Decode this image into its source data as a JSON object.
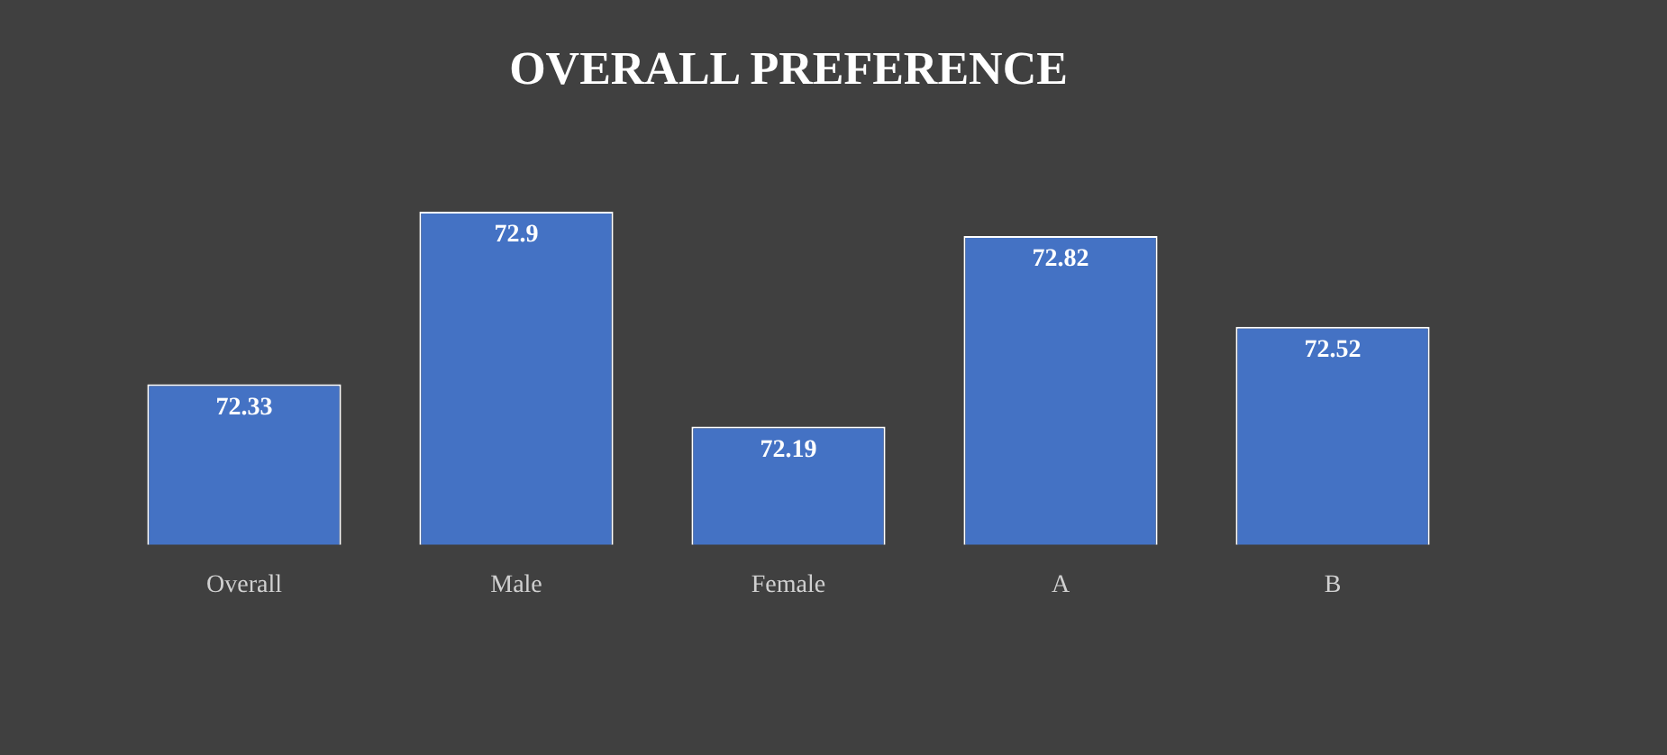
{
  "chart_data": {
    "type": "bar",
    "title": "OVERALL PREFERENCE",
    "categories": [
      "Overall",
      "Male",
      "Female",
      "A",
      "B"
    ],
    "values": [
      72.33,
      72.9,
      72.19,
      72.82,
      72.52
    ],
    "color": "#4472c4",
    "tick_labels": "x",
    "data_labels": true,
    "grid": false,
    "legend": false
  }
}
